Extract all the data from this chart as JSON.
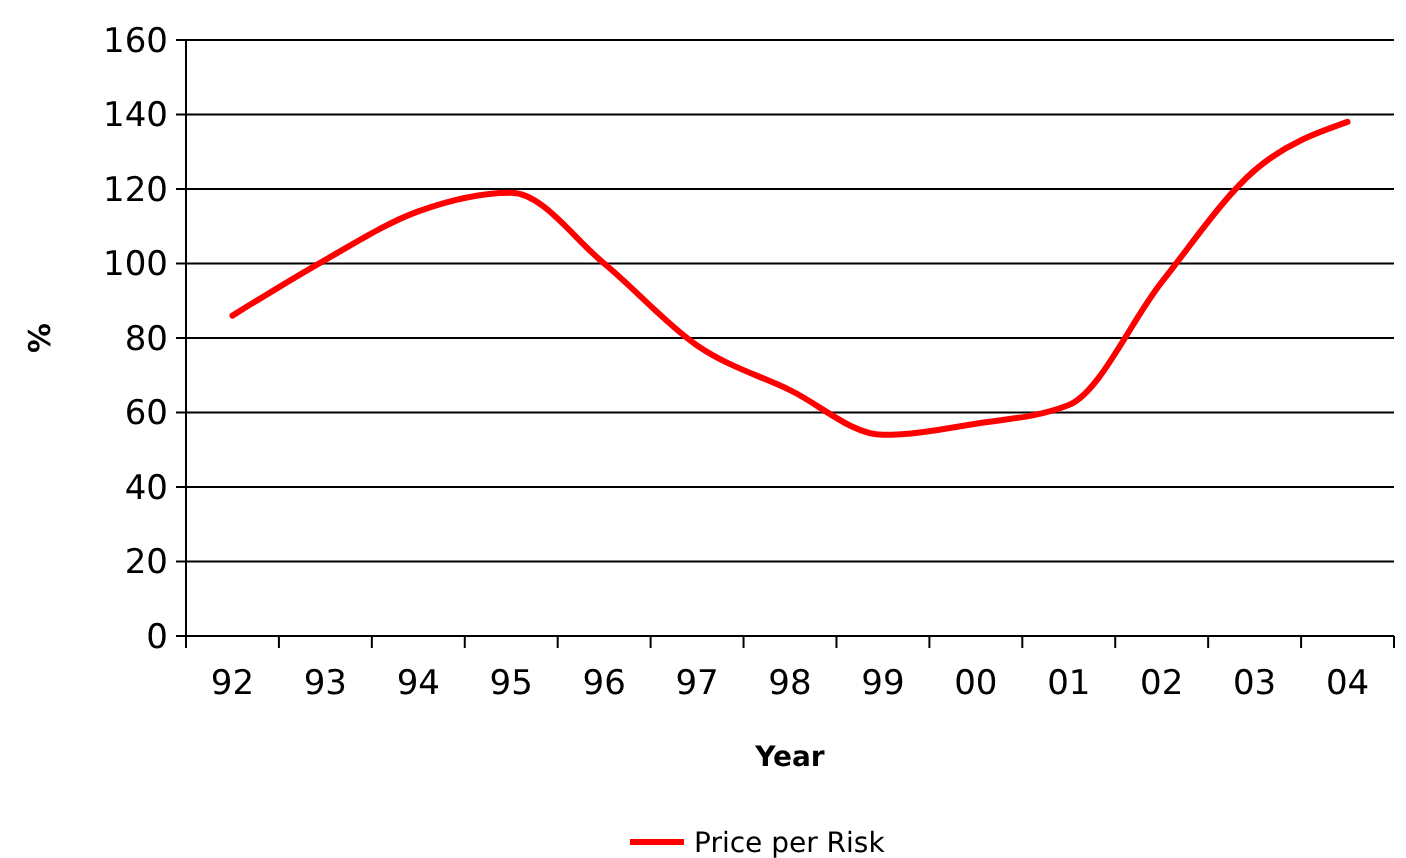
{
  "chart_data": {
    "type": "line",
    "xlabel": "Year",
    "ylabel": "%",
    "categories": [
      "92",
      "93",
      "94",
      "95",
      "96",
      "97",
      "98",
      "99",
      "00",
      "01",
      "02",
      "03",
      "04"
    ],
    "series": [
      {
        "name": "Price per Risk",
        "color": "#ff0000",
        "values": [
          86,
          101,
          114,
          119,
          100,
          78,
          66,
          54,
          57,
          62,
          95,
          125,
          138
        ]
      }
    ],
    "ylim": [
      0,
      160
    ],
    "yticks": [
      0,
      20,
      40,
      60,
      80,
      100,
      120,
      140,
      160
    ],
    "grid": "y",
    "legend": "bottom",
    "marker": "none",
    "line_style": "solid"
  }
}
